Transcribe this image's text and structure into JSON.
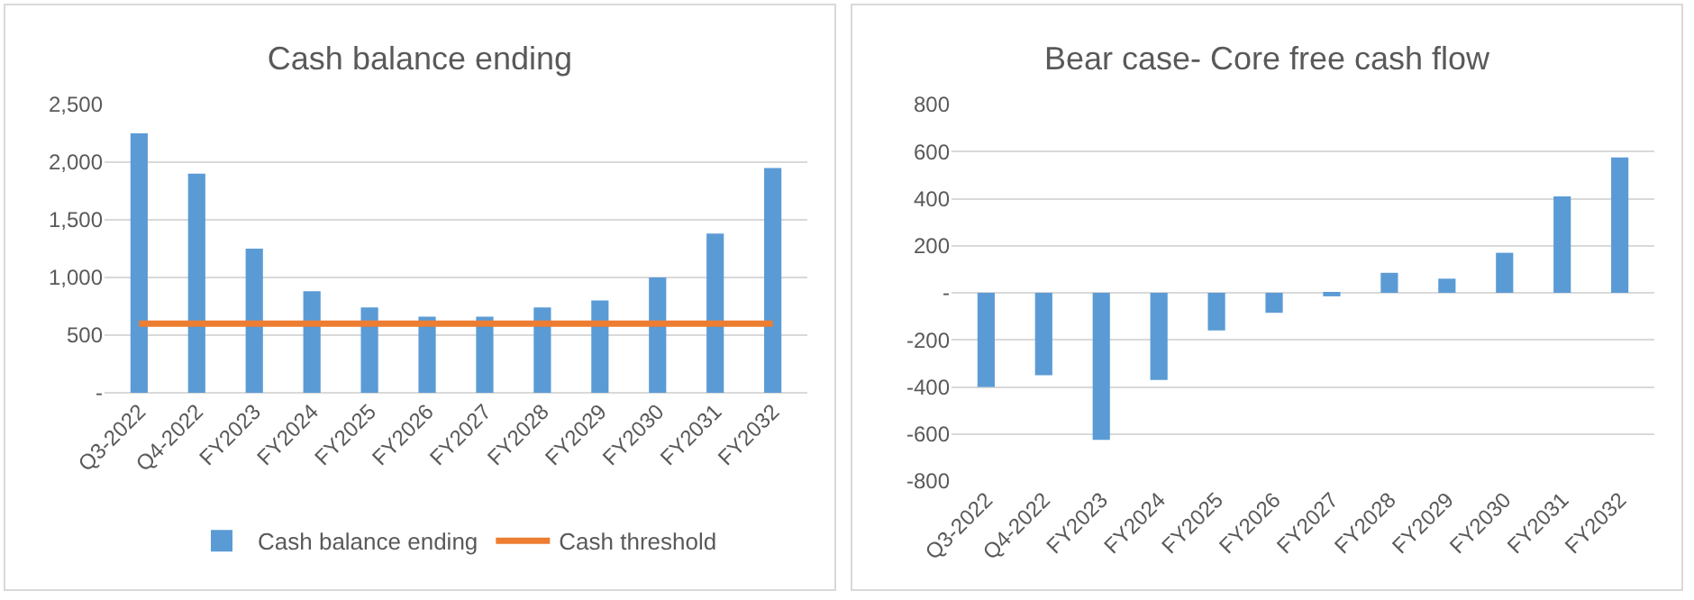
{
  "chart_data": [
    {
      "type": "bar",
      "title": "Cash balance ending",
      "categories": [
        "Q3-2022",
        "Q4-2022",
        "FY2023",
        "FY2024",
        "FY2025",
        "FY2026",
        "FY2027",
        "FY2028",
        "FY2029",
        "FY2030",
        "FY2031",
        "FY2032"
      ],
      "series": [
        {
          "name": "Cash balance ending",
          "color": "#5b9bd5",
          "values": [
            2250,
            1900,
            1250,
            880,
            740,
            660,
            660,
            740,
            800,
            1000,
            1380,
            1950
          ]
        },
        {
          "name": "Cash threshold",
          "type": "line",
          "color": "#ed7d31",
          "values": [
            600,
            600,
            600,
            600,
            600,
            600,
            600,
            600,
            600,
            600,
            600,
            600
          ]
        }
      ],
      "ylim": [
        0,
        2500
      ],
      "yticks": [
        {
          "value": 0,
          "label": "-"
        },
        {
          "value": 500,
          "label": "500"
        },
        {
          "value": 1000,
          "label": "1,000"
        },
        {
          "value": 1500,
          "label": "1,500"
        },
        {
          "value": 2000,
          "label": "2,000"
        },
        {
          "value": 2500,
          "label": "2,500"
        }
      ],
      "grid": "y",
      "legend": "bottom"
    },
    {
      "type": "bar",
      "title": "Bear case- Core free cash flow",
      "categories": [
        "Q3-2022",
        "Q4-2022",
        "FY2023",
        "FY2024",
        "FY2025",
        "FY2026",
        "FY2027",
        "FY2028",
        "FY2029",
        "FY2030",
        "FY2031",
        "FY2032"
      ],
      "series": [
        {
          "color": "#5b9bd5",
          "values": [
            -400,
            -350,
            -625,
            -370,
            -160,
            -85,
            -15,
            85,
            60,
            170,
            410,
            575
          ]
        }
      ],
      "ylim": [
        -800,
        800
      ],
      "yticks": [
        -800,
        -600,
        -400,
        -200,
        {
          "value": 0,
          "label": "-"
        },
        200,
        400,
        600,
        800
      ],
      "grid": "y",
      "legend": false
    }
  ]
}
